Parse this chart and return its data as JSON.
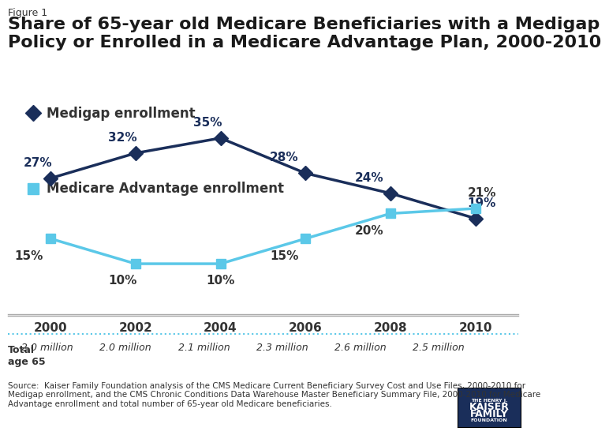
{
  "figure_label": "Figure 1",
  "title": "Share of 65-year old Medicare Beneficiaries with a Medigap\nPolicy or Enrolled in a Medicare Advantage Plan, 2000-2010",
  "years": [
    2000,
    2002,
    2004,
    2006,
    2008,
    2010
  ],
  "medigap": [
    27,
    32,
    35,
    28,
    24,
    19
  ],
  "medicare_adv": [
    15,
    10,
    10,
    15,
    20,
    21
  ],
  "medigap_color": "#1a2e5a",
  "ma_color": "#5bc8e8",
  "medigap_label": "Medigap enrollment",
  "ma_label": "Medicare Advantage enrollment",
  "total_age65": [
    "2.0 million",
    "2.0 million",
    "2.1 million",
    "2.3 million",
    "2.6 million",
    "2.5 million"
  ],
  "source_text": "Source:  Kaiser Family Foundation analysis of the CMS Medicare Current Beneficiary Survey Cost and Use Files, 2000-2010 for\nMedigap enrollment, and the CMS Chronic Conditions Data Warehouse Master Beneficiary Summary File, 2000-2010 for Medicare\nAdvantage enrollment and total number of 65-year old Medicare beneficiaries.",
  "ylim": [
    0,
    45
  ],
  "background_color": "#ffffff"
}
